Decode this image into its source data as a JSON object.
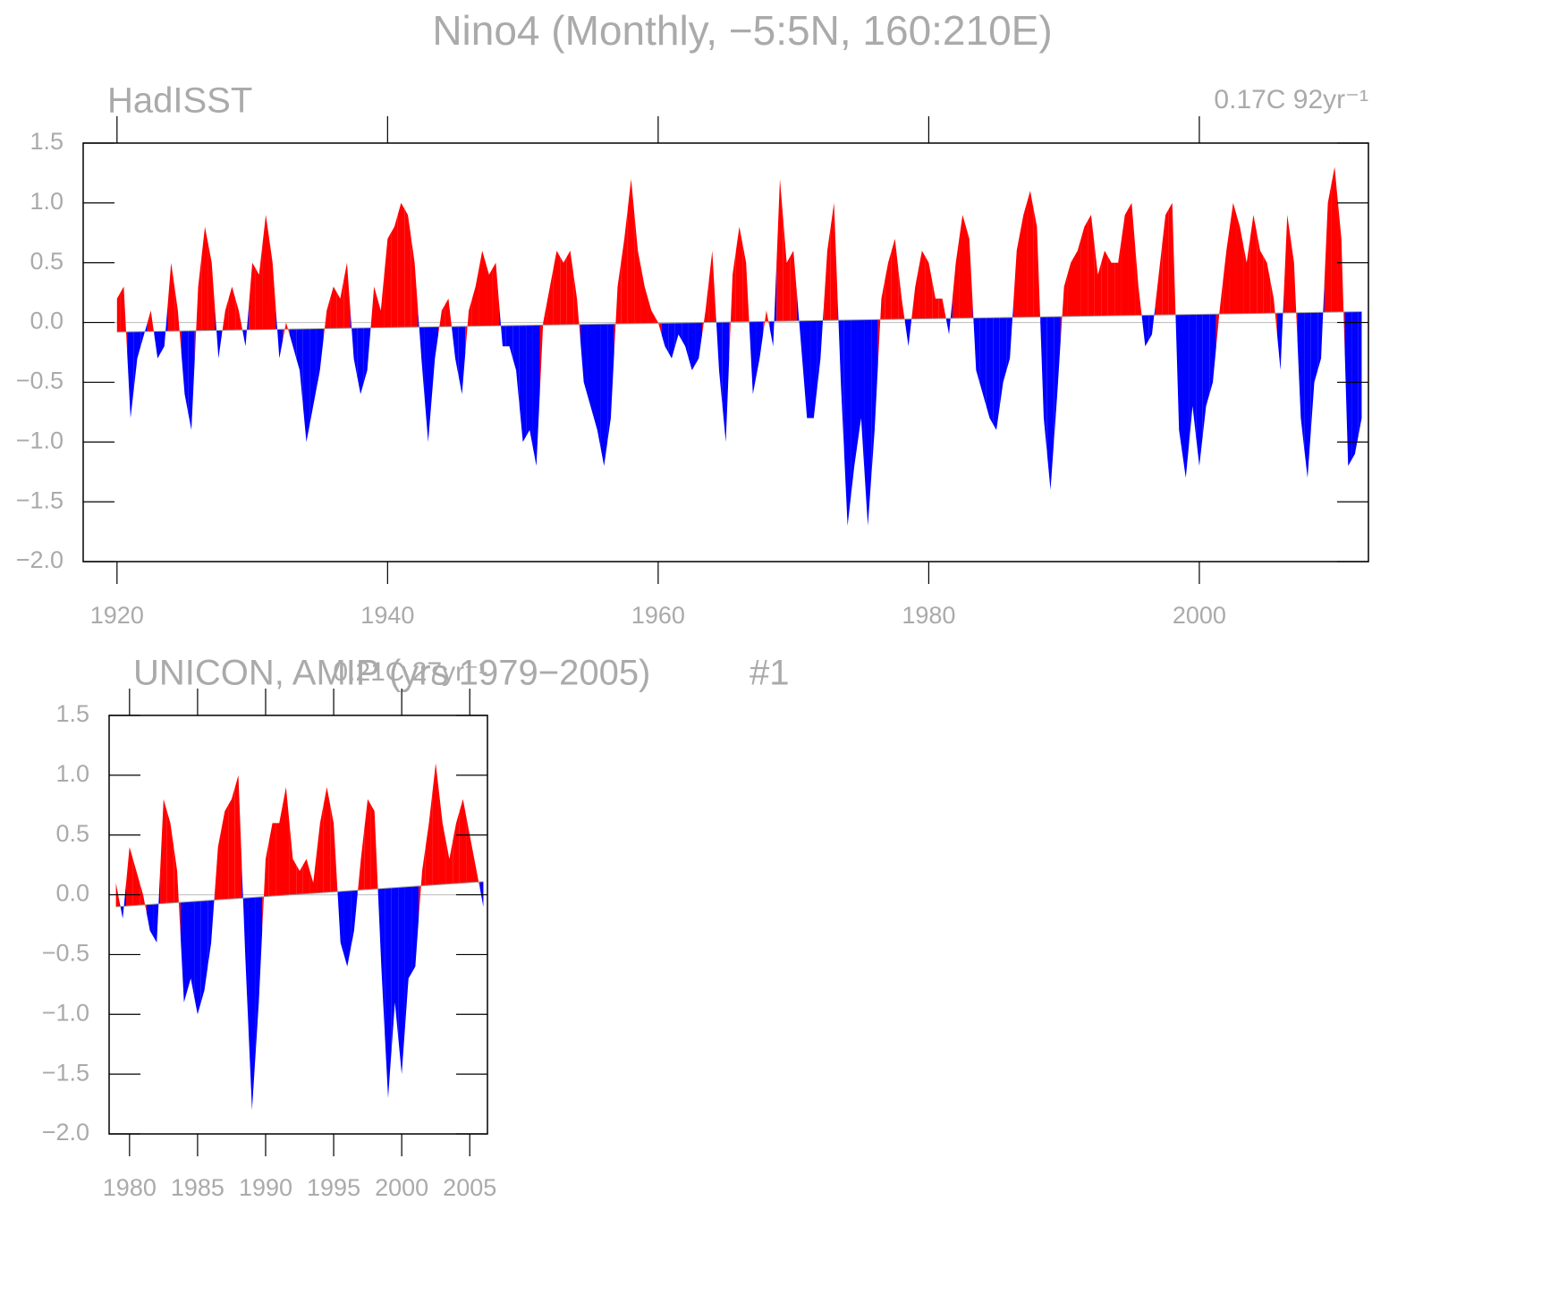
{
  "title": "Nino4 (Monthly, −5:5N, 160:210E)",
  "chart_data": [
    {
      "type": "anomaly",
      "subtitle": "HadISST",
      "trend_label": "0.17C 92yr⁻¹",
      "above_color": "#ff0000",
      "below_color": "#0000ff",
      "xlim": [
        1917.5,
        2012.5
      ],
      "ylim": [
        -2,
        1.5
      ],
      "xticks": [
        1920,
        1940,
        1960,
        1980,
        2000
      ],
      "yticks": [
        1.5,
        {
          "value": 1,
          "label": "1.0"
        },
        0.5,
        {
          "value": 0,
          "label": "0.0"
        },
        {
          "value": -0.5,
          "label": "−0.5"
        },
        {
          "value": -1,
          "label": "−1.0"
        },
        {
          "value": -1.5,
          "label": "−1.5"
        },
        {
          "value": -2,
          "label": "−2.0"
        }
      ],
      "trend": {
        "x": [
          1920,
          2012
        ],
        "values": [
          -0.08,
          0.09
        ]
      },
      "x": [
        1920,
        1920.5,
        1921,
        1921.5,
        1922,
        1922.5,
        1923,
        1923.5,
        1924,
        1924.5,
        1925,
        1925.5,
        1926,
        1926.5,
        1927,
        1927.5,
        1928,
        1928.5,
        1929,
        1929.5,
        1930,
        1930.5,
        1931,
        1931.5,
        1932,
        1932.5,
        1933,
        1933.5,
        1934,
        1934.5,
        1935,
        1935.5,
        1936,
        1936.5,
        1937,
        1937.5,
        1938,
        1938.5,
        1939,
        1939.5,
        1940,
        1940.5,
        1941,
        1941.5,
        1942,
        1942.5,
        1943,
        1943.5,
        1944,
        1944.5,
        1945,
        1945.5,
        1946,
        1946.5,
        1947,
        1947.5,
        1948,
        1948.5,
        1949,
        1949.5,
        1950,
        1950.5,
        1951,
        1951.5,
        1952,
        1952.5,
        1953,
        1953.5,
        1954,
        1954.5,
        1955,
        1955.5,
        1956,
        1956.5,
        1957,
        1957.5,
        1958,
        1958.5,
        1959,
        1959.5,
        1960,
        1960.5,
        1961,
        1961.5,
        1962,
        1962.5,
        1963,
        1963.5,
        1964,
        1964.5,
        1965,
        1965.5,
        1966,
        1966.5,
        1967,
        1967.5,
        1968,
        1968.5,
        1969,
        1969.5,
        1970,
        1970.5,
        1971,
        1971.5,
        1972,
        1972.5,
        1973,
        1973.5,
        1974,
        1974.5,
        1975,
        1975.5,
        1976,
        1976.5,
        1977,
        1977.5,
        1978,
        1978.5,
        1979,
        1979.5,
        1980,
        1980.5,
        1981,
        1981.5,
        1982,
        1982.5,
        1983,
        1983.5,
        1984,
        1984.5,
        1985,
        1985.5,
        1986,
        1986.5,
        1987,
        1987.5,
        1988,
        1988.5,
        1989,
        1989.5,
        1990,
        1990.5,
        1991,
        1991.5,
        1992,
        1992.5,
        1993,
        1993.5,
        1994,
        1994.5,
        1995,
        1995.5,
        1996,
        1996.5,
        1997,
        1997.5,
        1998,
        1998.5,
        1999,
        1999.5,
        2000,
        2000.5,
        2001,
        2001.5,
        2002,
        2002.5,
        2003,
        2003.5,
        2004,
        2004.5,
        2005,
        2005.5,
        2006,
        2006.5,
        2007,
        2007.5,
        2008,
        2008.5,
        2009,
        2009.5,
        2010,
        2010.5,
        2011,
        2011.5,
        2012
      ],
      "values": [
        0.2,
        0.3,
        -0.8,
        -0.3,
        -0.1,
        0.1,
        -0.3,
        -0.2,
        0.5,
        0.1,
        -0.6,
        -0.9,
        0.3,
        0.8,
        0.5,
        -0.3,
        0.1,
        0.3,
        0.1,
        -0.2,
        0.5,
        0.4,
        0.9,
        0.5,
        -0.3,
        0.0,
        -0.2,
        -0.4,
        -1.0,
        -0.7,
        -0.4,
        0.1,
        0.3,
        0.2,
        0.5,
        -0.3,
        -0.6,
        -0.4,
        0.3,
        0.1,
        0.7,
        0.8,
        1.0,
        0.9,
        0.5,
        -0.3,
        -1.0,
        -0.3,
        0.1,
        0.2,
        -0.3,
        -0.6,
        0.1,
        0.3,
        0.6,
        0.4,
        0.5,
        -0.2,
        -0.2,
        -0.4,
        -1.0,
        -0.9,
        -1.2,
        0.0,
        0.3,
        0.6,
        0.5,
        0.6,
        0.2,
        -0.5,
        -0.7,
        -0.9,
        -1.2,
        -0.8,
        0.3,
        0.7,
        1.2,
        0.6,
        0.3,
        0.1,
        0.0,
        -0.2,
        -0.3,
        -0.1,
        -0.2,
        -0.4,
        -0.3,
        0.1,
        0.6,
        -0.4,
        -1.0,
        0.4,
        0.8,
        0.5,
        -0.6,
        -0.3,
        0.1,
        -0.2,
        1.2,
        0.5,
        0.6,
        -0.1,
        -0.8,
        -0.8,
        -0.3,
        0.6,
        1.0,
        -0.5,
        -1.7,
        -1.2,
        -0.8,
        -1.7,
        -0.9,
        0.2,
        0.5,
        0.7,
        0.2,
        -0.2,
        0.3,
        0.6,
        0.5,
        0.2,
        0.2,
        -0.1,
        0.5,
        0.9,
        0.7,
        -0.4,
        -0.6,
        -0.8,
        -0.9,
        -0.5,
        -0.3,
        0.6,
        0.9,
        1.1,
        0.8,
        -0.8,
        -1.4,
        -0.6,
        0.3,
        0.5,
        0.6,
        0.8,
        0.9,
        0.4,
        0.6,
        0.5,
        0.5,
        0.9,
        1.0,
        0.3,
        -0.2,
        -0.1,
        0.4,
        0.9,
        1.0,
        -0.9,
        -1.3,
        -0.7,
        -1.2,
        -0.7,
        -0.5,
        0.1,
        0.6,
        1.0,
        0.8,
        0.5,
        0.9,
        0.6,
        0.5,
        0.2,
        -0.4,
        0.9,
        0.5,
        -0.8,
        -1.3,
        -0.5,
        -0.3,
        1.0,
        1.3,
        0.7,
        -1.2,
        -1.1,
        -0.8
      ]
    },
    {
      "type": "anomaly",
      "subtitle": "UNICON, AMIP (yrs 1979−2005)",
      "run_label": "#1",
      "trend_label": "0.21C 27yr⁻¹",
      "above_color": "#ff0000",
      "below_color": "#0000ff",
      "xlim": [
        1978.5,
        2006.3
      ],
      "ylim": [
        -2,
        1.5
      ],
      "xticks": [
        1980,
        1985,
        1990,
        1995,
        2000,
        2005
      ],
      "yticks": [
        1.5,
        {
          "value": 1,
          "label": "1.0"
        },
        0.5,
        {
          "value": 0,
          "label": "0.0"
        },
        {
          "value": -0.5,
          "label": "−0.5"
        },
        {
          "value": -1,
          "label": "−1.0"
        },
        {
          "value": -1.5,
          "label": "−1.5"
        },
        {
          "value": -2,
          "label": "−2.0"
        }
      ],
      "trend": {
        "x": [
          1979,
          2006
        ],
        "values": [
          -0.1,
          0.11
        ]
      },
      "x": [
        1979,
        1979.5,
        1980,
        1980.5,
        1981,
        1981.5,
        1982,
        1982.5,
        1983,
        1983.5,
        1984,
        1984.5,
        1985,
        1985.5,
        1986,
        1986.5,
        1987,
        1987.5,
        1988,
        1988.5,
        1989,
        1989.5,
        1990,
        1990.5,
        1991,
        1991.5,
        1992,
        1992.5,
        1993,
        1993.5,
        1994,
        1994.5,
        1995,
        1995.5,
        1996,
        1996.5,
        1997,
        1997.5,
        1998,
        1998.5,
        1999,
        1999.5,
        2000,
        2000.5,
        2001,
        2001.5,
        2002,
        2002.5,
        2003,
        2003.5,
        2004,
        2004.5,
        2005,
        2005.5,
        2006
      ],
      "values": [
        0.1,
        -0.2,
        0.4,
        0.2,
        0.0,
        -0.3,
        -0.4,
        0.8,
        0.6,
        0.2,
        -0.9,
        -0.7,
        -1.0,
        -0.8,
        -0.4,
        0.4,
        0.7,
        0.8,
        1.0,
        -0.5,
        -1.8,
        -0.9,
        0.3,
        0.6,
        0.6,
        0.9,
        0.3,
        0.2,
        0.3,
        0.1,
        0.6,
        0.9,
        0.6,
        -0.4,
        -0.6,
        -0.3,
        0.3,
        0.8,
        0.7,
        -0.6,
        -1.7,
        -0.9,
        -1.5,
        -0.7,
        -0.6,
        0.2,
        0.6,
        1.1,
        0.6,
        0.3,
        0.6,
        0.8,
        0.5,
        0.2,
        -0.1
      ]
    }
  ]
}
